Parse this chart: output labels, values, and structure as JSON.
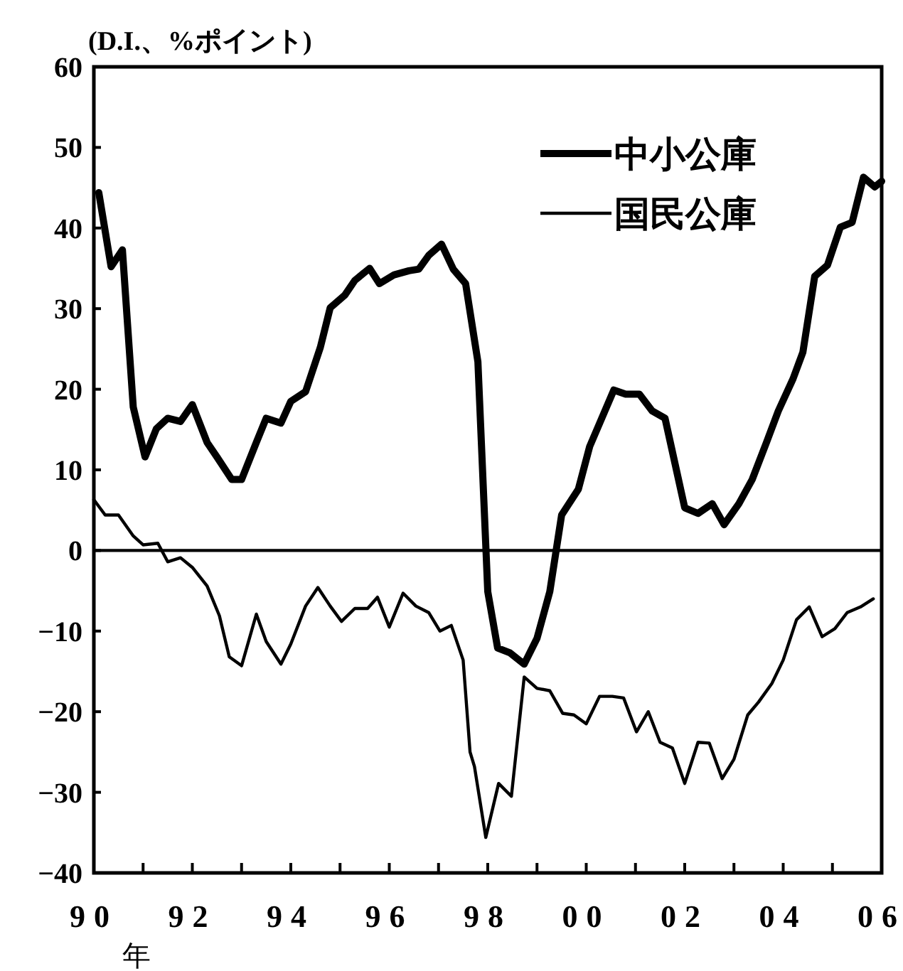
{
  "chart_data": {
    "type": "line",
    "ylabel": "(D.I.、%ポイント)",
    "xlabel": "年",
    "xlim": [
      1990,
      2006
    ],
    "xticks": [
      {
        "value": 1990,
        "label": "90"
      },
      {
        "value": 1991,
        "label": null
      },
      {
        "value": 1992,
        "label": "92"
      },
      {
        "value": 1993,
        "label": null
      },
      {
        "value": 1994,
        "label": "94"
      },
      {
        "value": 1995,
        "label": null
      },
      {
        "value": 1996,
        "label": "96"
      },
      {
        "value": 1997,
        "label": null
      },
      {
        "value": 1998,
        "label": "98"
      },
      {
        "value": 1999,
        "label": null
      },
      {
        "value": 2000,
        "label": "00"
      },
      {
        "value": 2001,
        "label": null
      },
      {
        "value": 2002,
        "label": "02"
      },
      {
        "value": 2003,
        "label": null
      },
      {
        "value": 2004,
        "label": "04"
      },
      {
        "value": 2005,
        "label": null
      },
      {
        "value": 2006,
        "label": "06"
      }
    ],
    "ylim": [
      -40,
      60
    ],
    "yticks": [
      -40,
      -30,
      -20,
      -10,
      0,
      10,
      20,
      30,
      40,
      50,
      60
    ],
    "grid": false,
    "legend": "top right",
    "ref_lines": [
      {
        "axis": "y",
        "value": 0,
        "color": "#000000"
      }
    ],
    "series": [
      {
        "name": "中小公庫",
        "color": "#000000",
        "x": [
          1990.1,
          1990.35,
          1990.58,
          1990.8,
          1991.04,
          1991.27,
          1991.5,
          1991.76,
          1992.0,
          1992.3,
          1992.5,
          1992.8,
          1993.0,
          1993.3,
          1993.5,
          1993.8,
          1994.0,
          1994.3,
          1994.6,
          1994.8,
          1995.1,
          1995.3,
          1995.6,
          1995.8,
          1996.1,
          1996.4,
          1996.6,
          1996.8,
          1997.06,
          1997.3,
          1997.55,
          1997.8,
          1998.0,
          1998.2,
          1998.45,
          1998.74,
          1999.0,
          1999.26,
          1999.5,
          1999.84,
          2000.07,
          2000.56,
          2000.8,
          2001.08,
          2001.34,
          2001.6,
          2002.0,
          2002.27,
          2002.56,
          2002.8,
          2003.1,
          2003.37,
          2003.66,
          2003.9,
          2004.2,
          2004.4,
          2004.64,
          2004.9,
          2005.16,
          2005.4,
          2005.63,
          2005.86,
          2006.0
        ],
        "values": [
          44.4,
          35.2,
          37.3,
          17.8,
          11.6,
          15.1,
          16.4,
          16.0,
          18.1,
          13.4,
          11.6,
          8.8,
          8.8,
          13.4,
          16.4,
          15.8,
          18.5,
          19.7,
          25.2,
          30.1,
          31.7,
          33.5,
          35.0,
          33.1,
          34.2,
          34.7,
          34.9,
          36.6,
          38.0,
          34.9,
          33.1,
          23.4,
          -5.1,
          -12.1,
          -12.7,
          -14.1,
          -10.9,
          -5.1,
          4.4,
          7.6,
          12.9,
          19.9,
          19.4,
          19.4,
          17.3,
          16.4,
          5.3,
          4.6,
          5.8,
          3.2,
          5.8,
          8.8,
          13.4,
          17.3,
          21.3,
          24.6,
          34.0,
          35.4,
          40.1,
          40.7,
          46.3,
          45.1,
          45.8
        ]
      },
      {
        "name": "国民公庫",
        "color": "#000000",
        "x": [
          1990.0,
          1990.23,
          1990.5,
          1990.8,
          1991.0,
          1991.3,
          1991.5,
          1991.76,
          1992.0,
          1992.3,
          1992.55,
          1992.75,
          1993.0,
          1993.3,
          1993.5,
          1993.8,
          1994.0,
          1994.3,
          1994.55,
          1994.8,
          1995.03,
          1995.3,
          1995.56,
          1995.76,
          1996.0,
          1996.28,
          1996.54,
          1996.8,
          1997.03,
          1997.26,
          1997.5,
          1997.64,
          1997.73,
          1997.96,
          1998.22,
          1998.48,
          1998.74,
          1999.0,
          1999.26,
          1999.52,
          1999.75,
          2000.0,
          2000.27,
          2000.53,
          2000.76,
          2001.02,
          2001.26,
          2001.5,
          2001.75,
          2002.0,
          2002.27,
          2002.5,
          2002.76,
          2003.0,
          2003.28,
          2003.5,
          2003.77,
          2004.0,
          2004.27,
          2004.53,
          2004.79,
          2005.05,
          2005.3,
          2005.57,
          2005.83
        ],
        "values": [
          6.3,
          4.4,
          4.4,
          1.8,
          0.7,
          0.9,
          -1.4,
          -0.9,
          -2.1,
          -4.4,
          -8.1,
          -13.2,
          -14.3,
          -7.9,
          -11.3,
          -14.1,
          -11.6,
          -6.9,
          -4.6,
          -6.9,
          -8.8,
          -7.2,
          -7.2,
          -5.8,
          -9.5,
          -5.3,
          -6.9,
          -7.7,
          -10.0,
          -9.3,
          -13.6,
          -25.0,
          -26.8,
          -35.6,
          -28.9,
          -30.5,
          -15.7,
          -17.1,
          -17.4,
          -20.2,
          -20.4,
          -21.5,
          -18.1,
          -18.1,
          -18.3,
          -22.5,
          -20.0,
          -23.8,
          -24.5,
          -28.9,
          -23.8,
          -23.9,
          -28.3,
          -25.9,
          -20.4,
          -18.8,
          -16.5,
          -13.6,
          -8.6,
          -7.0,
          -10.7,
          -9.7,
          -7.7,
          -7.0,
          -6.0
        ]
      }
    ]
  }
}
